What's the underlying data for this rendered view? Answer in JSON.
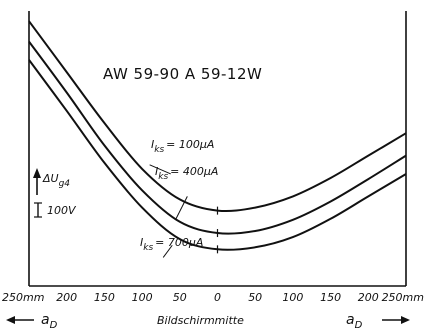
{
  "chart_data": {
    "type": "line",
    "title": "AW 59-90   A 59-12W",
    "xlabel": "Bildschirmmitte",
    "x_axis_name": "a",
    "x_axis_subscript": "D",
    "x_unit_label": "250mm",
    "x_ticks": [
      -250,
      -200,
      -150,
      -100,
      -50,
      0,
      50,
      100,
      150,
      200,
      250
    ],
    "x_tick_labels": [
      "250mm",
      "200",
      "150",
      "100",
      "50",
      "0",
      "50",
      "100",
      "150",
      "200",
      "250mm"
    ],
    "xlim": [
      -250,
      250
    ],
    "ylabel": "ΔU",
    "ylabel_subscript": "g4",
    "scale_bar_label": "100V",
    "scale_bar_volts": 100,
    "y_unit": "V",
    "ylim": [
      0,
      270
    ],
    "x": [
      -250,
      -200,
      -150,
      -100,
      -50,
      0,
      50,
      100,
      150,
      200,
      250
    ],
    "series": [
      {
        "name": "I_ks = 100µA",
        "label": "I",
        "label_sub": "ks",
        "label_value": "= 100µA",
        "values": [
          260,
          210,
          160,
          115,
          85,
          74,
          77,
          88,
          106,
          128,
          150
        ]
      },
      {
        "name": "I_ks = 400µA",
        "label": "I",
        "label_sub": "ks",
        "label_value": "= 400µA",
        "values": [
          240,
          190,
          138,
          94,
          63,
          52,
          54,
          65,
          83,
          105,
          128
        ]
      },
      {
        "name": "I_ks = 700µA",
        "label": "I",
        "label_sub": "ks",
        "label_value": "= 700µA",
        "values": [
          222,
          172,
          121,
          77,
          46,
          36,
          38,
          48,
          66,
          88,
          110
        ]
      }
    ],
    "grid": false,
    "legend": "inline labels"
  }
}
